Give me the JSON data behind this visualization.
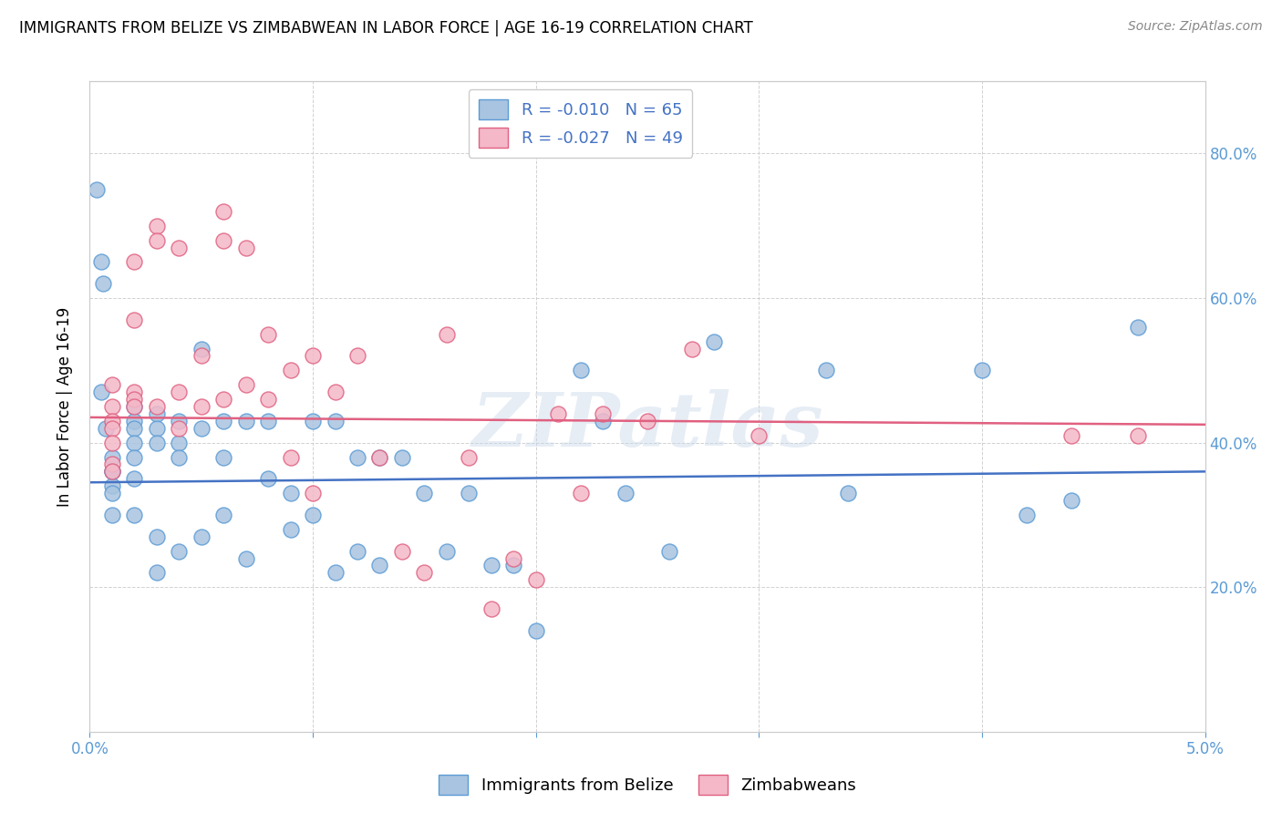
{
  "title": "IMMIGRANTS FROM BELIZE VS ZIMBABWEAN IN LABOR FORCE | AGE 16-19 CORRELATION CHART",
  "source": "Source: ZipAtlas.com",
  "ylabel": "In Labor Force | Age 16-19",
  "xlim": [
    0.0,
    0.05
  ],
  "ylim": [
    0.0,
    0.9
  ],
  "belize_color": "#a8c4e0",
  "belize_edge_color": "#5b9bd5",
  "zimbabwe_color": "#f4b8c8",
  "zimbabwe_edge_color": "#e06080",
  "belize_line_color": "#4472c4",
  "zimbabwe_line_color": "#e06080",
  "watermark": "ZIPatlas",
  "legend_R_belize": "-0.010",
  "legend_N_belize": "65",
  "legend_R_zimbabwe": "-0.027",
  "legend_N_zimbabwe": "49",
  "belize_line_y0": 0.345,
  "belize_line_y1": 0.36,
  "zimbabwe_line_y0": 0.435,
  "zimbabwe_line_y1": 0.425,
  "belize_x": [
    0.0003,
    0.0005,
    0.0005,
    0.0006,
    0.0007,
    0.001,
    0.001,
    0.001,
    0.001,
    0.001,
    0.001,
    0.002,
    0.002,
    0.002,
    0.002,
    0.002,
    0.002,
    0.002,
    0.003,
    0.003,
    0.003,
    0.003,
    0.003,
    0.004,
    0.004,
    0.004,
    0.004,
    0.005,
    0.005,
    0.005,
    0.006,
    0.006,
    0.006,
    0.007,
    0.007,
    0.008,
    0.008,
    0.009,
    0.009,
    0.01,
    0.01,
    0.011,
    0.011,
    0.012,
    0.012,
    0.013,
    0.013,
    0.014,
    0.015,
    0.016,
    0.017,
    0.018,
    0.019,
    0.02,
    0.022,
    0.023,
    0.024,
    0.026,
    0.028,
    0.033,
    0.034,
    0.04,
    0.042,
    0.044,
    0.047
  ],
  "belize_y": [
    0.75,
    0.65,
    0.47,
    0.62,
    0.42,
    0.36,
    0.38,
    0.34,
    0.36,
    0.33,
    0.3,
    0.45,
    0.43,
    0.42,
    0.4,
    0.38,
    0.35,
    0.3,
    0.44,
    0.42,
    0.4,
    0.27,
    0.22,
    0.43,
    0.4,
    0.38,
    0.25,
    0.53,
    0.42,
    0.27,
    0.43,
    0.38,
    0.3,
    0.43,
    0.24,
    0.43,
    0.35,
    0.33,
    0.28,
    0.43,
    0.3,
    0.43,
    0.22,
    0.38,
    0.25,
    0.38,
    0.23,
    0.38,
    0.33,
    0.25,
    0.33,
    0.23,
    0.23,
    0.14,
    0.5,
    0.43,
    0.33,
    0.25,
    0.54,
    0.5,
    0.33,
    0.5,
    0.3,
    0.32,
    0.56
  ],
  "zimbabwe_x": [
    0.001,
    0.001,
    0.001,
    0.001,
    0.001,
    0.001,
    0.001,
    0.002,
    0.002,
    0.002,
    0.002,
    0.002,
    0.003,
    0.003,
    0.003,
    0.004,
    0.004,
    0.004,
    0.005,
    0.005,
    0.006,
    0.006,
    0.006,
    0.007,
    0.007,
    0.008,
    0.008,
    0.009,
    0.009,
    0.01,
    0.01,
    0.011,
    0.012,
    0.013,
    0.014,
    0.015,
    0.016,
    0.017,
    0.018,
    0.019,
    0.02,
    0.021,
    0.022,
    0.023,
    0.025,
    0.027,
    0.03,
    0.044,
    0.047
  ],
  "zimbabwe_y": [
    0.48,
    0.45,
    0.43,
    0.42,
    0.4,
    0.37,
    0.36,
    0.65,
    0.57,
    0.47,
    0.46,
    0.45,
    0.7,
    0.68,
    0.45,
    0.67,
    0.47,
    0.42,
    0.52,
    0.45,
    0.72,
    0.68,
    0.46,
    0.67,
    0.48,
    0.55,
    0.46,
    0.5,
    0.38,
    0.52,
    0.33,
    0.47,
    0.52,
    0.38,
    0.25,
    0.22,
    0.55,
    0.38,
    0.17,
    0.24,
    0.21,
    0.44,
    0.33,
    0.44,
    0.43,
    0.53,
    0.41,
    0.41,
    0.41
  ]
}
